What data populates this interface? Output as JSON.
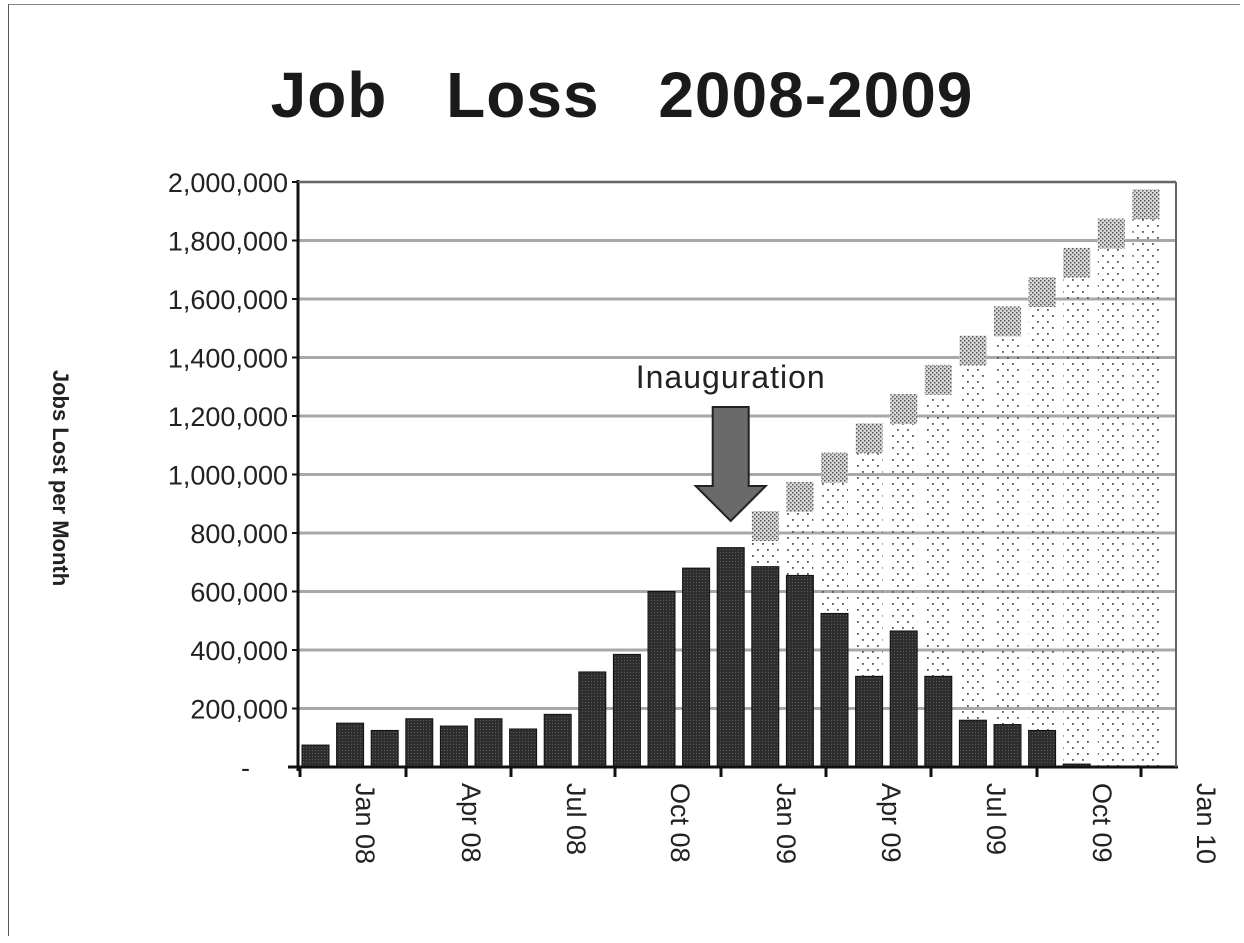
{
  "chart_data": {
    "type": "bar",
    "title": "Job Loss   2008-2009",
    "ylabel": "Jobs Lost per Month",
    "xlabel": "",
    "ylim": [
      0,
      2000000
    ],
    "y_ticks": [
      0,
      200000,
      400000,
      600000,
      800000,
      1000000,
      1200000,
      1400000,
      1600000,
      1800000,
      2000000
    ],
    "y_tick_labels": [
      "-",
      "200,000",
      "400,000",
      "600,000",
      "800,000",
      "1,000,000",
      "1,200,000",
      "1,400,000",
      "1,600,000",
      "1,800,000",
      "2,000,000"
    ],
    "x_tick_labels": [
      "Jan 08",
      "Apr 08",
      "Jul 08",
      "Oct 08",
      "Jan 09",
      "Apr 09",
      "Jul 09",
      "Oct 09",
      "Jan 10"
    ],
    "grid": true,
    "series": [
      {
        "values": [
          75000,
          150000,
          125000,
          165000,
          140000,
          165000,
          130000,
          180000,
          325000,
          385000,
          600000,
          680000,
          750000,
          685000,
          655000,
          525000,
          310000,
          465000,
          310000,
          160000,
          145000,
          125000,
          10000
        ],
        "color": "#333333"
      },
      {
        "values": [
          0,
          0,
          0,
          0,
          0,
          0,
          0,
          0,
          0,
          0,
          0,
          0,
          0,
          875000,
          975000,
          1075000,
          1175000,
          1275000,
          1375000,
          1475000,
          1575000,
          1675000,
          1775000,
          1875000,
          1975000
        ],
        "color": "#bdbdbd"
      }
    ],
    "annotations": [
      {
        "text": "Inauguration",
        "target_month_index": 12
      }
    ]
  }
}
